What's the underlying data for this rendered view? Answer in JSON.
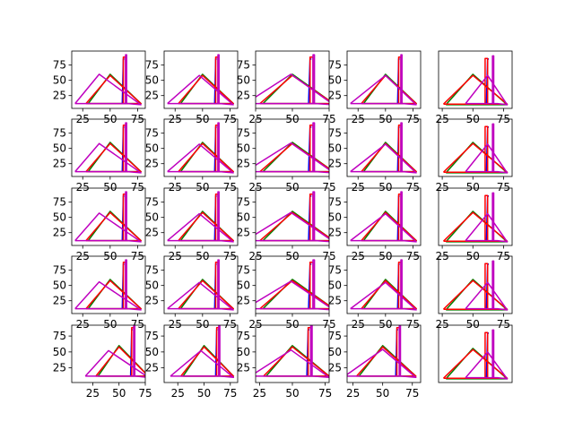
{
  "chart_data": {
    "type": "line",
    "layout": {
      "rows": 5,
      "cols": 5
    },
    "colors": {
      "blue": "#0000ff",
      "green": "#008000",
      "red": "#ff0000",
      "magenta": "#bf00bf"
    },
    "yticks": [
      "25",
      "50",
      "75"
    ],
    "yticks_wide": [
      "25",
      "50",
      "75"
    ],
    "plots": [
      {
        "xlim": [
          15,
          82
        ],
        "ylim": [
          4,
          98
        ],
        "xticks": [
          25,
          50,
          75
        ],
        "variant": "A",
        "mag_peak": [
          40,
          60
        ],
        "show_y": true
      },
      {
        "xlim": [
          15,
          82
        ],
        "ylim": [
          4,
          98
        ],
        "xticks": [
          25,
          50,
          75
        ],
        "variant": "B",
        "mag_peak": [
          47,
          58
        ],
        "show_y": true
      },
      {
        "xlim": [
          25,
          75
        ],
        "ylim": [
          4,
          98
        ],
        "xticks": [
          25,
          50,
          75
        ],
        "variant": "C",
        "mag_peak": [
          49,
          60
        ],
        "show_y": true
      },
      {
        "xlim": [
          15,
          82
        ],
        "ylim": [
          4,
          98
        ],
        "xticks": [
          25,
          50,
          75
        ],
        "variant": "D",
        "mag_peak": [
          50,
          58
        ],
        "show_y": true
      },
      {
        "xlim": [
          22,
          82
        ],
        "ylim": [
          4,
          98
        ],
        "xticks": [
          25,
          50,
          75
        ],
        "variant": "E",
        "mag_peak": [
          62,
          58
        ],
        "show_y": false
      },
      {
        "xlim": [
          15,
          82
        ],
        "ylim": [
          4,
          98
        ],
        "xticks": [
          25,
          50,
          75
        ],
        "variant": "A",
        "mag_peak": [
          40,
          58
        ],
        "show_y": true
      },
      {
        "xlim": [
          15,
          82
        ],
        "ylim": [
          4,
          98
        ],
        "xticks": [
          25,
          50,
          75
        ],
        "variant": "B",
        "mag_peak": [
          47,
          57
        ],
        "show_y": true
      },
      {
        "xlim": [
          25,
          75
        ],
        "ylim": [
          4,
          98
        ],
        "xticks": [
          25,
          50,
          75
        ],
        "variant": "C",
        "mag_peak": [
          49,
          59
        ],
        "show_y": true
      },
      {
        "xlim": [
          15,
          82
        ],
        "ylim": [
          4,
          98
        ],
        "xticks": [
          25,
          50,
          75
        ],
        "variant": "D",
        "mag_peak": [
          50,
          57
        ],
        "show_y": true
      },
      {
        "xlim": [
          22,
          82
        ],
        "ylim": [
          4,
          98
        ],
        "xticks": [
          25,
          50,
          75
        ],
        "variant": "E",
        "mag_peak": [
          62,
          57
        ],
        "show_y": false
      },
      {
        "xlim": [
          15,
          82
        ],
        "ylim": [
          4,
          98
        ],
        "xticks": [
          25,
          50,
          75
        ],
        "variant": "A",
        "mag_peak": [
          40,
          57
        ],
        "show_y": true
      },
      {
        "xlim": [
          15,
          82
        ],
        "ylim": [
          4,
          98
        ],
        "xticks": [
          25,
          50,
          75
        ],
        "variant": "B",
        "mag_peak": [
          47,
          56
        ],
        "show_y": true
      },
      {
        "xlim": [
          25,
          75
        ],
        "ylim": [
          4,
          98
        ],
        "xticks": [
          25,
          50,
          75
        ],
        "variant": "C",
        "mag_peak": [
          49,
          58
        ],
        "show_y": true
      },
      {
        "xlim": [
          15,
          82
        ],
        "ylim": [
          4,
          98
        ],
        "xticks": [
          25,
          50,
          75
        ],
        "variant": "D",
        "mag_peak": [
          50,
          56
        ],
        "show_y": true
      },
      {
        "xlim": [
          22,
          82
        ],
        "ylim": [
          4,
          98
        ],
        "xticks": [
          25,
          50,
          75
        ],
        "variant": "E",
        "mag_peak": [
          62,
          56
        ],
        "show_y": false
      },
      {
        "xlim": [
          15,
          82
        ],
        "ylim": [
          4,
          98
        ],
        "xticks": [
          25,
          50,
          75
        ],
        "variant": "A",
        "mag_peak": [
          40,
          56
        ],
        "show_y": true
      },
      {
        "xlim": [
          15,
          82
        ],
        "ylim": [
          4,
          98
        ],
        "xticks": [
          25,
          50,
          75
        ],
        "variant": "B",
        "mag_peak": [
          47,
          55
        ],
        "show_y": true
      },
      {
        "xlim": [
          25,
          75
        ],
        "ylim": [
          4,
          98
        ],
        "xticks": [
          25,
          50,
          75
        ],
        "variant": "C",
        "mag_peak": [
          49,
          57
        ],
        "show_y": true
      },
      {
        "xlim": [
          15,
          82
        ],
        "ylim": [
          4,
          98
        ],
        "xticks": [
          25,
          50,
          75
        ],
        "variant": "D",
        "mag_peak": [
          50,
          55
        ],
        "show_y": true
      },
      {
        "xlim": [
          22,
          82
        ],
        "ylim": [
          4,
          98
        ],
        "xticks": [
          25,
          50,
          75
        ],
        "variant": "E",
        "mag_peak": [
          62,
          55
        ],
        "show_y": false
      },
      {
        "xlim": [
          5,
          75
        ],
        "ylim": [
          2,
          92
        ],
        "xticks": [
          25,
          50,
          75
        ],
        "variant": "A",
        "mag_peak": [
          40,
          52
        ],
        "show_y": true,
        "show_x": true
      },
      {
        "xlim": [
          12,
          82
        ],
        "ylim": [
          2,
          92
        ],
        "xticks": [
          25,
          50,
          75
        ],
        "variant": "B",
        "mag_peak": [
          47,
          52
        ],
        "show_y": true,
        "show_x": true
      },
      {
        "xlim": [
          22,
          78
        ],
        "ylim": [
          2,
          92
        ],
        "xticks": [
          25,
          50,
          75
        ],
        "variant": "C",
        "mag_peak": [
          49,
          53
        ],
        "show_y": true,
        "show_x": true
      },
      {
        "xlim": [
          20,
          82
        ],
        "ylim": [
          2,
          92
        ],
        "xticks": [
          25,
          50,
          75
        ],
        "variant": "D",
        "mag_peak": [
          50,
          54
        ],
        "show_y": true,
        "show_x": true
      },
      {
        "xlim": [
          22,
          82
        ],
        "ylim": [
          4,
          98
        ],
        "xticks": [],
        "variant": "E",
        "mag_peak": [
          62,
          54
        ],
        "show_y": false,
        "show_x": false
      }
    ],
    "base_curves": {
      "green": [
        [
          30,
          12
        ],
        [
          50,
          60
        ],
        [
          78,
          12
        ],
        [
          30,
          12
        ]
      ],
      "red": [
        [
          28,
          12
        ],
        [
          50,
          58
        ],
        [
          78,
          12
        ],
        [
          62,
          12
        ],
        [
          62,
          88
        ],
        [
          64,
          88
        ],
        [
          64,
          12
        ],
        [
          28,
          12
        ]
      ],
      "blue": [
        [
          61,
          12
        ],
        [
          62,
          85
        ],
        [
          63,
          85
        ]
      ]
    }
  }
}
